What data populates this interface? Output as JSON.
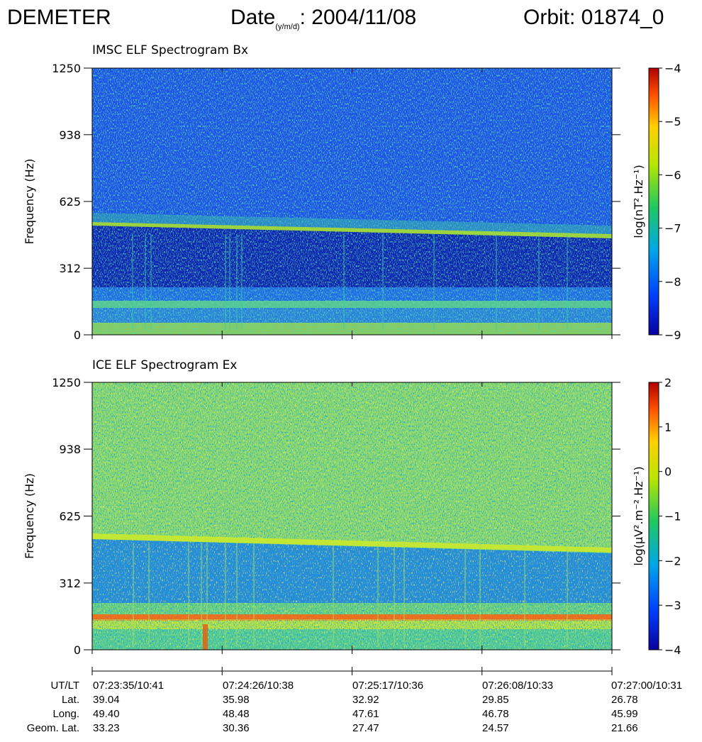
{
  "header": {
    "mission": "DEMETER",
    "date_label": "Date",
    "date_sub": "(y/m/d)",
    "date_value": ": 2004/11/08",
    "orbit": "Orbit: 01874_0"
  },
  "chart_data": [
    {
      "type": "heatmap",
      "title": "IMSC ELF Spectrogram Bx",
      "ylabel": "Frequency (Hz)",
      "ylim": [
        0,
        1250
      ],
      "yticks": [
        "0",
        "312",
        "625",
        "938",
        "1250"
      ],
      "colorbar": {
        "label": "log(nT².Hz⁻¹)",
        "range": [
          -9,
          -4
        ],
        "ticks": [
          "-9",
          "-8",
          "-7",
          "-6",
          "-5",
          "-4"
        ]
      },
      "features": [
        {
          "kind": "descending_line",
          "f_start_hz": 520,
          "f_end_hz": 450
        },
        {
          "kind": "band",
          "f_hz": 150
        },
        {
          "kind": "band",
          "f_hz": 40
        }
      ]
    },
    {
      "type": "heatmap",
      "title": "ICE ELF Spectrogram Ex",
      "ylabel": "Frequency (Hz)",
      "ylim": [
        0,
        1250
      ],
      "yticks": [
        "0",
        "312",
        "625",
        "938",
        "1250"
      ],
      "colorbar": {
        "label": "log(μV².m⁻².Hz⁻¹)",
        "range": [
          -4,
          2
        ],
        "ticks": [
          "-4",
          "-3",
          "-2",
          "-1",
          "0",
          "1",
          "2"
        ]
      },
      "features": [
        {
          "kind": "descending_line",
          "f_start_hz": 525,
          "f_end_hz": 460
        },
        {
          "kind": "band",
          "f_hz": 160
        },
        {
          "kind": "band",
          "f_hz": 200
        }
      ]
    }
  ],
  "ephemeris": {
    "rows": [
      {
        "label": "UT/LT",
        "values": [
          "07:23:35/10:41",
          "07:24:26/10:38",
          "07:25:17/10:36",
          "07:26:08/10:33",
          "07:27:00/10:31"
        ]
      },
      {
        "label": "Lat.",
        "values": [
          "39.04",
          "35.98",
          "32.92",
          "29.85",
          "26.78"
        ]
      },
      {
        "label": "Long.",
        "values": [
          "49.40",
          "48.48",
          "47.61",
          "46.78",
          "45.99"
        ]
      },
      {
        "label": "Geom. Lat.",
        "values": [
          "33.23",
          "30.36",
          "27.47",
          "24.57",
          "21.66"
        ]
      }
    ]
  }
}
